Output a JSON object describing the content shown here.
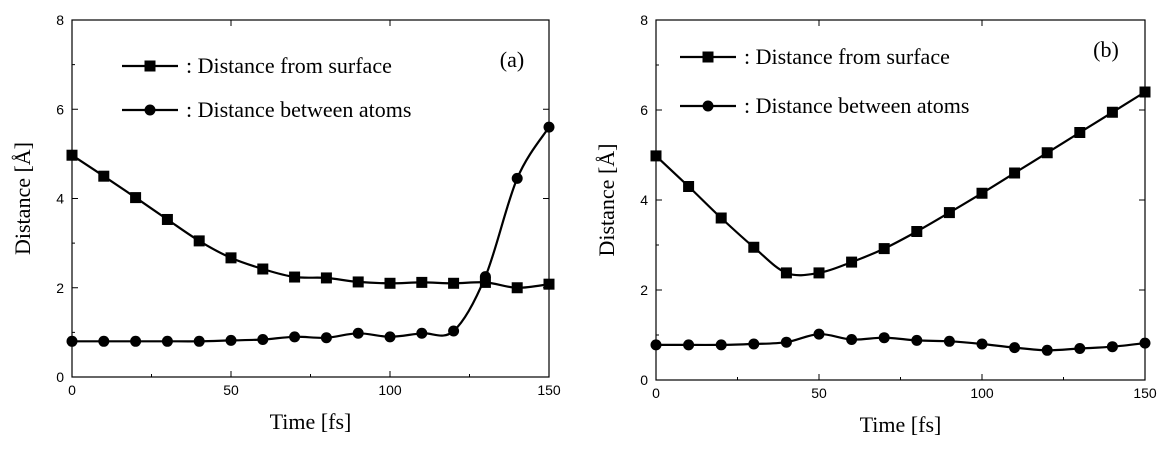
{
  "chart_data": [
    {
      "type": "line",
      "panel_label": "(a)",
      "xlabel": "Time [fs]",
      "ylabel": "Distance [Å]",
      "xlim": [
        0,
        150
      ],
      "ylim": [
        0,
        8
      ],
      "xticks": [
        0,
        50,
        100,
        150
      ],
      "yticks": [
        0,
        2,
        4,
        6,
        8
      ],
      "grid": false,
      "legend_position": "top-left",
      "legend": [
        {
          "label": ": Distance from surface",
          "marker": "square"
        },
        {
          "label": ": Distance between atoms",
          "marker": "circle"
        }
      ],
      "series": [
        {
          "marker": "square",
          "x": [
            0,
            10,
            20,
            30,
            40,
            50,
            60,
            70,
            80,
            90,
            100,
            110,
            120,
            130,
            140,
            150
          ],
          "values": [
            4.97,
            4.5,
            4.02,
            3.53,
            3.05,
            2.67,
            2.42,
            2.24,
            2.22,
            2.13,
            2.1,
            2.12,
            2.1,
            2.12,
            2.0,
            2.08
          ]
        },
        {
          "marker": "circle",
          "x": [
            0,
            10,
            20,
            30,
            40,
            50,
            60,
            70,
            80,
            90,
            100,
            110,
            120,
            130,
            140,
            150
          ],
          "values": [
            0.8,
            0.8,
            0.8,
            0.8,
            0.8,
            0.82,
            0.84,
            0.9,
            0.88,
            0.98,
            0.9,
            0.98,
            1.03,
            2.25,
            4.45,
            5.6
          ]
        }
      ]
    },
    {
      "type": "line",
      "panel_label": "(b)",
      "xlabel": "Time [fs]",
      "ylabel": "Distance [Å]",
      "xlim": [
        0,
        150
      ],
      "ylim": [
        0,
        8
      ],
      "xticks": [
        0,
        50,
        100,
        150
      ],
      "yticks": [
        0,
        2,
        4,
        6,
        8
      ],
      "grid": false,
      "legend_position": "top-left",
      "legend": [
        {
          "label": ": Distance from surface",
          "marker": "square"
        },
        {
          "label": ": Distance between atoms",
          "marker": "circle"
        }
      ],
      "series": [
        {
          "marker": "square",
          "x": [
            0,
            10,
            20,
            30,
            40,
            50,
            60,
            70,
            80,
            90,
            100,
            110,
            120,
            130,
            140,
            150
          ],
          "values": [
            4.98,
            4.3,
            3.6,
            2.95,
            2.38,
            2.38,
            2.62,
            2.92,
            3.3,
            3.72,
            4.15,
            4.6,
            5.05,
            5.5,
            5.95,
            6.4
          ]
        },
        {
          "marker": "circle",
          "x": [
            0,
            10,
            20,
            30,
            40,
            50,
            60,
            70,
            80,
            90,
            100,
            110,
            120,
            130,
            140,
            150
          ],
          "values": [
            0.78,
            0.78,
            0.78,
            0.8,
            0.84,
            1.02,
            0.9,
            0.94,
            0.88,
            0.86,
            0.8,
            0.72,
            0.66,
            0.7,
            0.74,
            0.82
          ]
        }
      ]
    }
  ]
}
